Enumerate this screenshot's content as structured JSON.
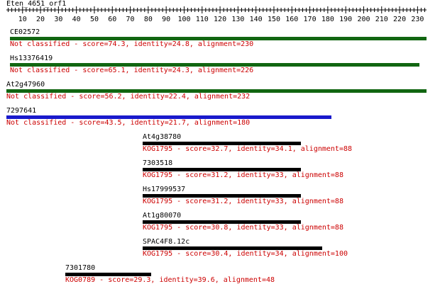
{
  "sequence": {
    "title": "Eten_4651_orf1"
  },
  "ruler": {
    "min": 1,
    "max": 235,
    "major_step": 10,
    "minor_step": 2,
    "tick_labels": [
      "10",
      "20",
      "30",
      "40",
      "50",
      "60",
      "70",
      "80",
      "90",
      "100",
      "110",
      "120",
      "130",
      "140",
      "150",
      "160",
      "170",
      "180",
      "190",
      "200",
      "210",
      "220",
      "230"
    ]
  },
  "hits": [
    {
      "id": "CE02572",
      "start": 3,
      "end": 235,
      "color": "#116611",
      "desc_color": "#cc0000",
      "description": "Not classified - score=74.3, identity=24.8, alignment=230"
    },
    {
      "id": "Hs13376419",
      "start": 3,
      "end": 231,
      "color": "#116611",
      "desc_color": "#cc0000",
      "description": "Not classified - score=65.1, identity=24.3, alignment=226"
    },
    {
      "id": "At2g47960",
      "start": 1,
      "end": 235,
      "color": "#116611",
      "desc_color": "#cc0000",
      "description": "Not classified - score=56.2, identity=22.4, alignment=232"
    },
    {
      "id": "7297641",
      "start": 1,
      "end": 182,
      "color": "#1a1acc",
      "desc_color": "#cc0000",
      "description": "Not classified - score=43.5, identity=21.7, alignment=180"
    },
    {
      "id": "At4g38780",
      "start": 77,
      "end": 165,
      "color": "#000000",
      "desc_color": "#cc0000",
      "description": "KOG1795 - score=32.7, identity=34.1, alignment=88"
    },
    {
      "id": "7303518",
      "start": 77,
      "end": 165,
      "color": "#000000",
      "desc_color": "#cc0000",
      "description": "KOG1795 - score=31.2, identity=33, alignment=88"
    },
    {
      "id": "Hs17999537",
      "start": 77,
      "end": 165,
      "color": "#000000",
      "desc_color": "#cc0000",
      "description": "KOG1795 - score=31.2, identity=33, alignment=88"
    },
    {
      "id": "At1g80070",
      "start": 77,
      "end": 165,
      "color": "#000000",
      "desc_color": "#cc0000",
      "description": "KOG1795 - score=30.8, identity=33, alignment=88"
    },
    {
      "id": "SPAC4F8.12c",
      "start": 77,
      "end": 177,
      "color": "#000000",
      "desc_color": "#cc0000",
      "description": "KOG1795 - score=30.4, identity=34, alignment=100"
    },
    {
      "id": "7301780",
      "start": 34,
      "end": 82,
      "color": "#000000",
      "desc_color": "#cc0000",
      "description": "KOG0789 - score=29.3, identity=39.6, alignment=48"
    }
  ]
}
